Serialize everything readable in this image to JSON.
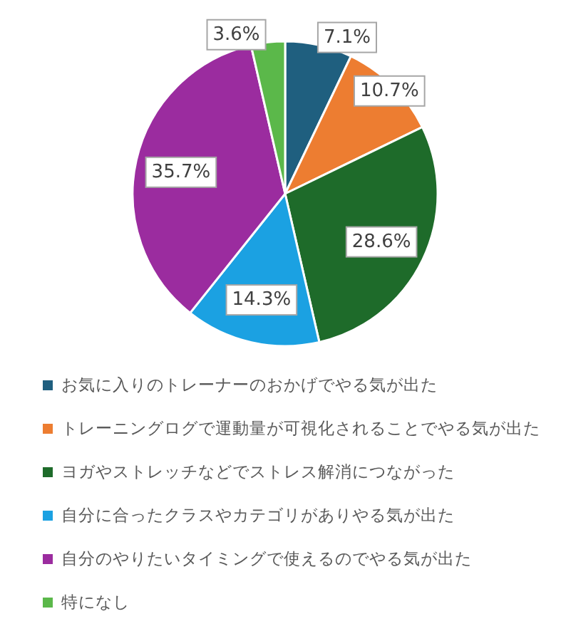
{
  "chart_data": {
    "type": "pie",
    "categories": [
      "お気に入りのトレーナーのおかげでやる気が出た",
      "トレーニングログで運動量が可視化されることでやる気が出た",
      "ヨガやストレッチなどでストレス解消につながった",
      "自分に合ったクラスやカテゴリがありやる気が出た",
      "自分のやりたいタイミングで使えるのでやる気が出た",
      "特になし"
    ],
    "values": [
      7.1,
      10.7,
      28.6,
      14.3,
      35.7,
      3.6
    ],
    "colors": [
      "#1f5f7f",
      "#ed7d31",
      "#1e6b2a",
      "#1ba1e2",
      "#9b2c9f",
      "#5bb84a"
    ],
    "value_labels": [
      "7.1%",
      "10.7%",
      "28.6%",
      "14.3%",
      "35.7%",
      "3.6%"
    ],
    "legend": "bottom"
  }
}
